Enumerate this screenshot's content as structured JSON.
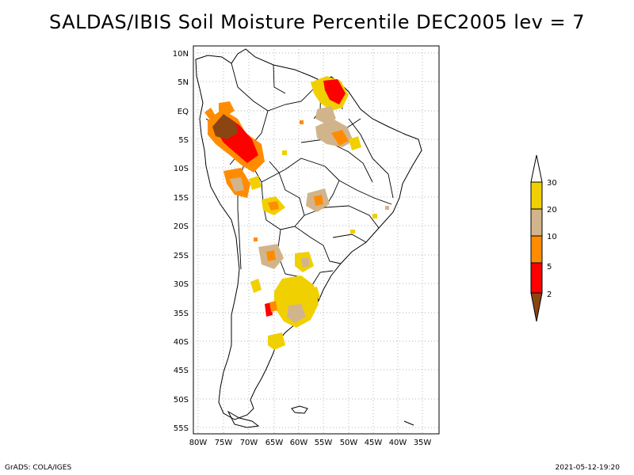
{
  "title": "SALDAS/IBIS Soil Moisture Percentile DEC2005 lev = 7",
  "axes": {
    "lat_labels": [
      "10N",
      "5N",
      "EQ",
      "5S",
      "10S",
      "15S",
      "20S",
      "25S",
      "30S",
      "35S",
      "40S",
      "45S",
      "50S",
      "55S"
    ],
    "lon_labels": [
      "80W",
      "75W",
      "70W",
      "65W",
      "60W",
      "55W",
      "50W",
      "45W",
      "40W",
      "35W"
    ]
  },
  "legend": {
    "labels": [
      "30",
      "20",
      "10",
      "5",
      "2"
    ],
    "colors": {
      "above30": "#ffffff",
      "p20_30": "#f0d000",
      "p10_20": "#d2b48c",
      "p5_10": "#ff8c00",
      "p2_5": "#ff0000",
      "below2": "#8b4513"
    }
  },
  "footer": {
    "left": "GrADS: COLA/IGES",
    "right": "2021-05-12-19:20"
  }
}
